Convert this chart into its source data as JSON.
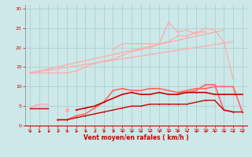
{
  "x": [
    0,
    1,
    2,
    3,
    4,
    5,
    6,
    7,
    8,
    9,
    10,
    11,
    12,
    13,
    14,
    15,
    16,
    17,
    18,
    19,
    20,
    21,
    22,
    23
  ],
  "line_diag1": {
    "x": [
      0,
      21
    ],
    "y": [
      13.5,
      24.5
    ],
    "color": "#ffaaaa",
    "lw": 0.9,
    "marker": null
  },
  "line_diag2": {
    "x": [
      0,
      22
    ],
    "y": [
      13.5,
      21.5
    ],
    "color": "#ffaaaa",
    "lw": 0.9,
    "marker": null
  },
  "line_upper_jagged": [
    null,
    null,
    null,
    null,
    null,
    null,
    null,
    null,
    null,
    19.5,
    21,
    21,
    21,
    21,
    21,
    26.5,
    24,
    24.5,
    23.5,
    25,
    24.5,
    21.5,
    12,
    null
  ],
  "line_mid1": [
    null,
    null,
    null,
    null,
    null,
    null,
    null,
    null,
    null,
    null,
    null,
    null,
    null,
    null,
    null,
    null,
    null,
    null,
    null,
    null,
    24,
    24,
    24,
    null
  ],
  "line_top_start": [
    13.5,
    13.5,
    13.5,
    13.5,
    13.5,
    14,
    15,
    16,
    16.5,
    17,
    18,
    19,
    19.5,
    20,
    21,
    21.5,
    23,
    23,
    24,
    24,
    null,
    null,
    null,
    null
  ],
  "line_med_curve": [
    null,
    null,
    null,
    1.5,
    1.5,
    2.5,
    3,
    4.5,
    6,
    9,
    9.5,
    9,
    9,
    9.5,
    9.5,
    9,
    8.5,
    8.5,
    9,
    10.5,
    10.5,
    4,
    3.5,
    null
  ],
  "line_med_right": [
    null,
    null,
    null,
    null,
    null,
    null,
    null,
    null,
    null,
    null,
    null,
    null,
    null,
    null,
    null,
    null,
    8.5,
    9,
    9.5,
    9.5,
    10,
    10,
    10,
    3.5
  ],
  "line_low_curve": [
    null,
    null,
    null,
    null,
    null,
    4,
    4.5,
    5,
    6,
    7,
    8,
    8.5,
    8,
    8,
    8.5,
    8,
    8,
    8.5,
    8.5,
    8.5,
    8,
    8,
    8,
    8
  ],
  "line_bottom1": [
    4.5,
    5.5,
    5.5,
    null,
    null,
    null,
    null,
    null,
    null,
    null,
    null,
    null,
    null,
    null,
    null,
    null,
    null,
    null,
    null,
    null,
    null,
    null,
    null,
    null
  ],
  "line_bottom2": [
    4.5,
    5.5,
    null,
    null,
    4,
    null,
    null,
    null,
    null,
    null,
    null,
    null,
    null,
    null,
    null,
    null,
    null,
    null,
    null,
    null,
    null,
    null,
    null,
    null
  ],
  "line_flat_dark": [
    4.5,
    4.5,
    4.5,
    null,
    null,
    null,
    null,
    null,
    null,
    null,
    null,
    null,
    null,
    null,
    null,
    null,
    null,
    null,
    null,
    null,
    null,
    null,
    null,
    null
  ],
  "line_dark_low": [
    null,
    null,
    null,
    1.5,
    1.5,
    2,
    2.5,
    3,
    3.5,
    4,
    4.5,
    5,
    5,
    5.5,
    5.5,
    5.5,
    5.5,
    5.5,
    6,
    6.5,
    6.5,
    4,
    3.5,
    3.5
  ],
  "arrows_x": [
    0,
    1,
    2,
    3,
    4,
    5,
    6,
    7,
    8,
    9,
    10,
    11,
    12,
    13,
    14,
    15,
    16,
    17,
    18,
    19,
    20,
    21,
    22,
    23
  ],
  "bg_color": "#cce8e8",
  "grid_color": "#aacccc",
  "color_light": "#ffaaaa",
  "color_mid": "#ff6666",
  "color_dark": "#cc0000",
  "xlabel": "Vent moyen/en rafales ( km/h )",
  "ylim": [
    -4,
    32
  ],
  "plot_ylim": [
    0,
    31
  ],
  "xlim": [
    -0.5,
    23.5
  ],
  "yticks": [
    0,
    5,
    10,
    15,
    20,
    25,
    30
  ],
  "xticks": [
    0,
    1,
    2,
    3,
    4,
    5,
    6,
    7,
    8,
    9,
    10,
    11,
    12,
    13,
    14,
    15,
    16,
    17,
    18,
    19,
    20,
    21,
    22,
    23
  ]
}
